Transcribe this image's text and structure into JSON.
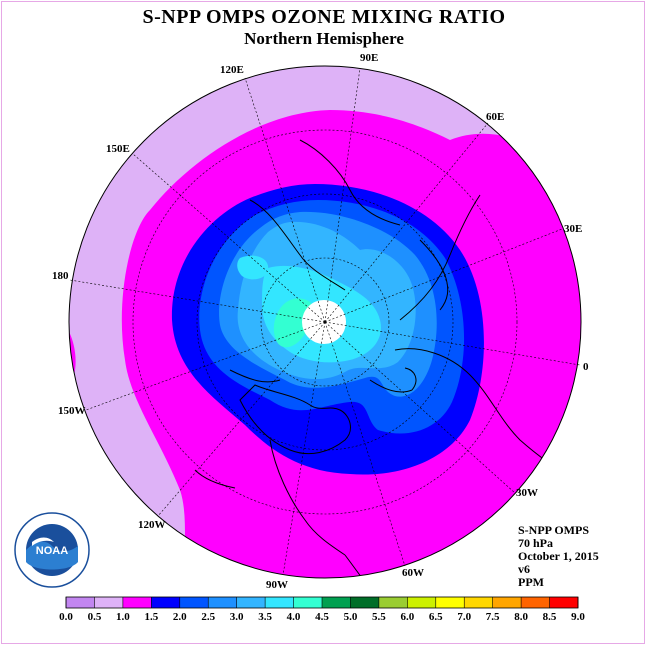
{
  "title": "S-NPP OMPS OZONE MIXING RATIO",
  "subtitle": "Northern Hemisphere",
  "longitude_labels": [
    "90E",
    "60E",
    "30E",
    "0",
    "30W",
    "60W",
    "90W",
    "120W",
    "150W",
    "180",
    "150E",
    "120E"
  ],
  "info": {
    "instrument": "S-NPP OMPS",
    "level": "70 hPa",
    "date": "October 1, 2015",
    "version": "v6",
    "units": "PPM"
  },
  "logo_text": "NOAA",
  "colorbar": {
    "ticks": [
      "0.0",
      "0.5",
      "1.0",
      "1.5",
      "2.0",
      "2.5",
      "3.0",
      "3.5",
      "4.0",
      "4.5",
      "5.0",
      "5.5",
      "6.0",
      "6.5",
      "7.0",
      "7.5",
      "8.0",
      "8.5",
      "9.0"
    ],
    "colors": [
      "#c286f0",
      "#deb2f7",
      "#ff00ff",
      "#0000ff",
      "#0055ff",
      "#1e90ff",
      "#33b5ff",
      "#33e6ff",
      "#33ffd2",
      "#00a050",
      "#006e28",
      "#9acd32",
      "#ccf000",
      "#ffff00",
      "#ffd700",
      "#ffa500",
      "#ff6400",
      "#ff0000",
      "#8b5a2b"
    ]
  },
  "colors": {
    "low": "#deb2f7",
    "band_1_0": "#ff00ff",
    "band_1_5": "#0000ff",
    "band_2_0": "#0055ff",
    "band_2_5": "#1e90ff",
    "band_3_0": "#33b5ff",
    "band_3_5": "#33e6ff",
    "band_4_0": "#33ffd2",
    "pole_hole": "#ffffff"
  }
}
